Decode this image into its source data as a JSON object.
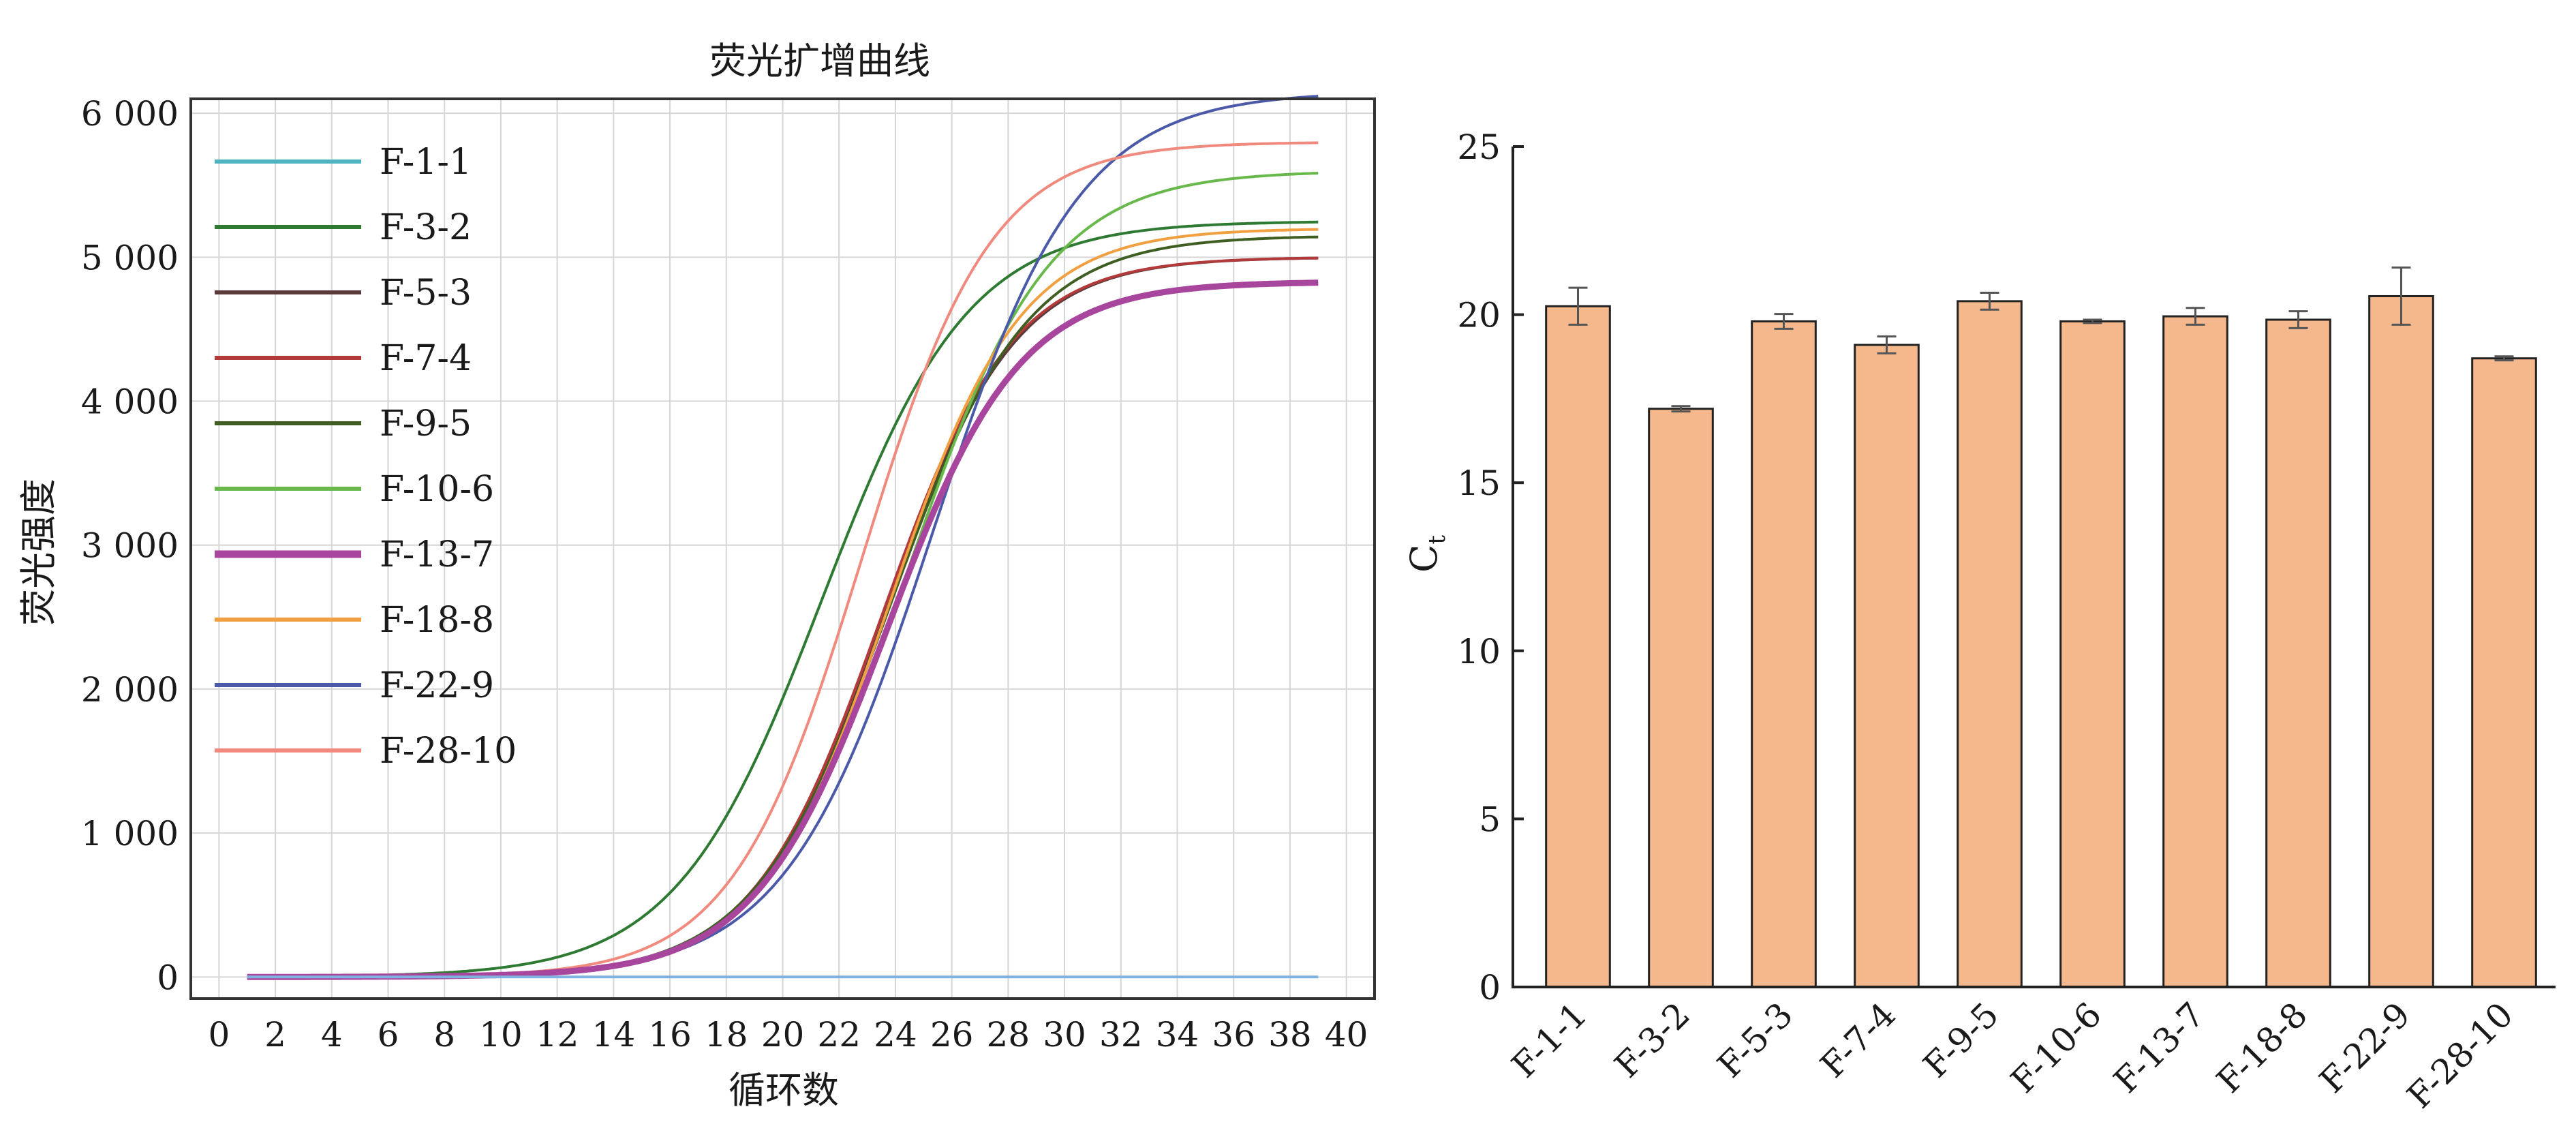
{
  "chart_data": [
    {
      "type": "line",
      "title": "荧光扩增曲线",
      "xlabel": "循环数",
      "ylabel": "荧光强度",
      "xlim": [
        -1,
        41
      ],
      "ylim": [
        -150,
        6100
      ],
      "x_ticks": [
        0,
        2,
        4,
        6,
        8,
        10,
        12,
        14,
        16,
        18,
        20,
        22,
        24,
        26,
        28,
        30,
        32,
        34,
        36,
        38,
        40
      ],
      "y_ticks": [
        0,
        1000,
        2000,
        3000,
        4000,
        5000,
        6000
      ],
      "y_tick_labels": [
        "0",
        "1 000",
        "2 000",
        "3 000",
        "4 000",
        "5 000",
        "6 000"
      ],
      "grid": true,
      "legend_position": "top-left",
      "cycle_range": [
        1,
        39
      ],
      "series": [
        {
          "name": "F-1-1",
          "color": "#4fb3c0",
          "width": 4,
          "plateau": 0,
          "midpoint": 0,
          "slope": 1
        },
        {
          "name": "F-3-2",
          "color": "#2e7a32",
          "width": 4,
          "plateau": 5250,
          "midpoint": 21.4,
          "slope": 2.6
        },
        {
          "name": "F-5-3",
          "color": "#5a3a3a",
          "width": 4,
          "plateau": 5000,
          "midpoint": 23.6,
          "slope": 2.3
        },
        {
          "name": "F-7-4",
          "color": "#b23a3a",
          "width": 4,
          "plateau": 5000,
          "midpoint": 23.5,
          "slope": 2.3
        },
        {
          "name": "F-9-5",
          "color": "#3f5f22",
          "width": 4,
          "plateau": 5150,
          "midpoint": 23.8,
          "slope": 2.4
        },
        {
          "name": "F-10-6",
          "color": "#68b84c",
          "width": 4,
          "plateau": 5600,
          "midpoint": 24.4,
          "slope": 2.5
        },
        {
          "name": "F-13-7",
          "color": "#a8459c",
          "width": 9,
          "plateau": 4830,
          "midpoint": 23.7,
          "slope": 2.35
        },
        {
          "name": "F-18-8",
          "color": "#f0a040",
          "width": 4,
          "plateau": 5200,
          "midpoint": 23.8,
          "slope": 2.3
        },
        {
          "name": "F-22-9",
          "color": "#4a5aa8",
          "width": 4,
          "plateau": 6150,
          "midpoint": 25.3,
          "slope": 2.6
        },
        {
          "name": "F-28-10",
          "color": "#f08a7e",
          "width": 4,
          "plateau": 5800,
          "midpoint": 22.8,
          "slope": 2.3
        }
      ],
      "baseline_color": "#7fb2e0"
    },
    {
      "type": "bar",
      "xlabel": "",
      "ylabel": "Ct",
      "ylabel_main": "C",
      "ylabel_sub": "t",
      "ylim": [
        0,
        25
      ],
      "y_ticks": [
        0,
        5,
        10,
        15,
        20,
        25
      ],
      "grid": false,
      "bar_color": "#f5b78c",
      "bar_edge_color": "#222222",
      "error_bar_color": "#555555",
      "categories": [
        "F-1-1",
        "F-3-2",
        "F-5-3",
        "F-7-4",
        "F-9-5",
        "F-10-6",
        "F-13-7",
        "F-18-8",
        "F-22-9",
        "F-28-10"
      ],
      "values": [
        20.25,
        17.2,
        19.8,
        19.1,
        20.4,
        19.8,
        19.95,
        19.85,
        20.55,
        18.7
      ],
      "errors": [
        0.55,
        0.08,
        0.22,
        0.25,
        0.25,
        0.05,
        0.25,
        0.25,
        0.85,
        0.06
      ]
    }
  ]
}
